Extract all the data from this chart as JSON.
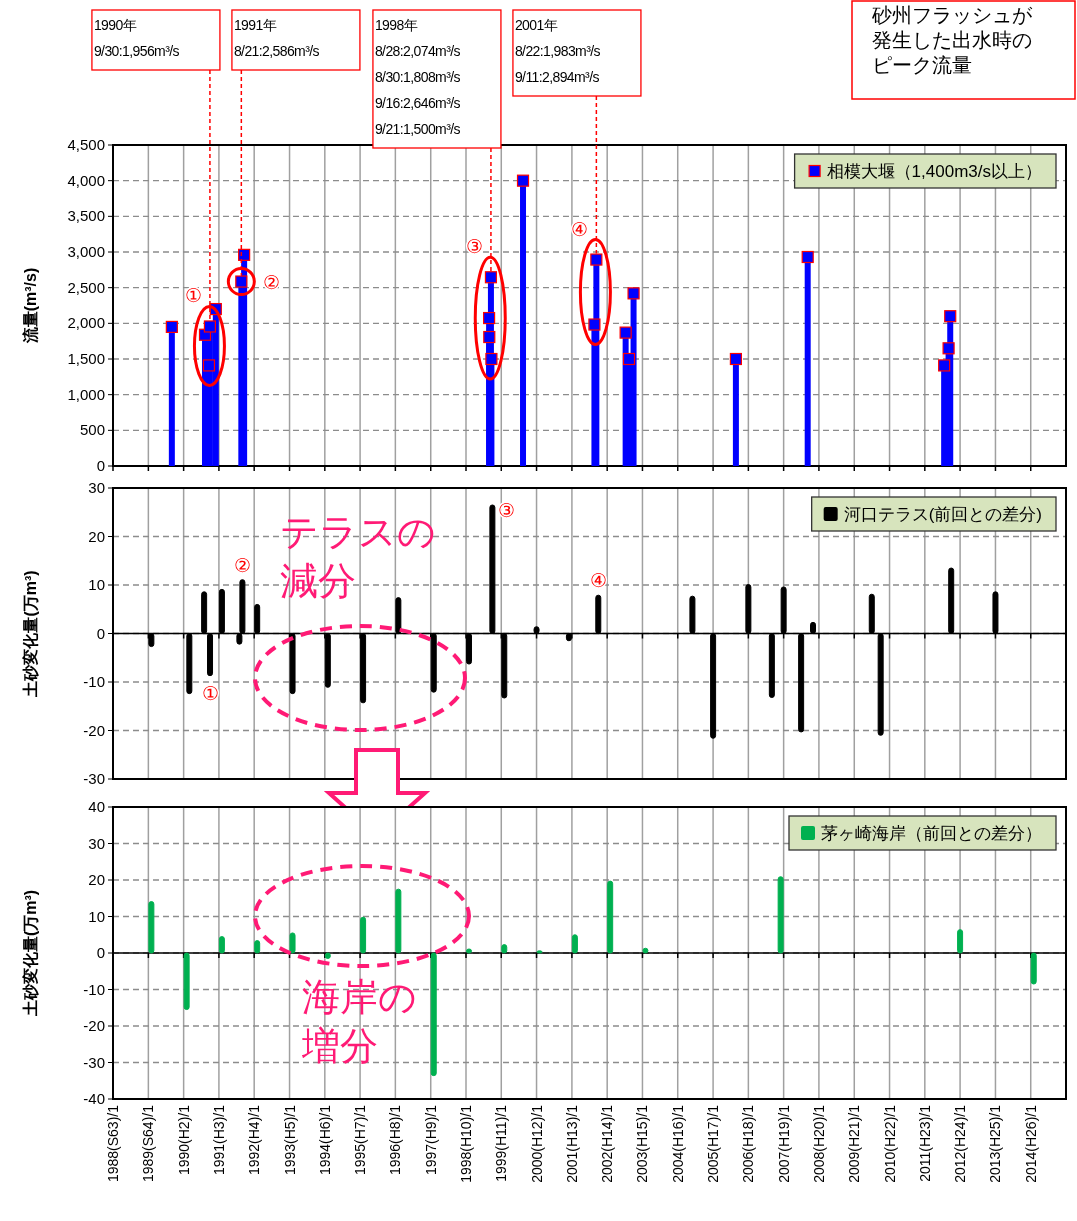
{
  "chart_data": [
    {
      "type": "lollipop",
      "ylabel": "流量(m³/s)",
      "marker": "square",
      "grid": true,
      "legend": "top right",
      "tick_labels": "y",
      "xlim": [
        "1988-01",
        "2015-01"
      ],
      "xticks": [
        {
          "value": "1988-01",
          "label": null
        },
        {
          "value": "1989-01",
          "label": null
        },
        {
          "value": "1990-01",
          "label": null
        },
        {
          "value": "1991-01",
          "label": null
        },
        {
          "value": "1992-01",
          "label": null
        },
        {
          "value": "1993-01",
          "label": null
        },
        {
          "value": "1994-01",
          "label": null
        },
        {
          "value": "1995-01",
          "label": null
        },
        {
          "value": "1996-01",
          "label": null
        },
        {
          "value": "1997-01",
          "label": null
        },
        {
          "value": "1998-01",
          "label": null
        },
        {
          "value": "1999-01",
          "label": null
        },
        {
          "value": "2000-01",
          "label": null
        },
        {
          "value": "2001-01",
          "label": null
        },
        {
          "value": "2002-01",
          "label": null
        },
        {
          "value": "2003-01",
          "label": null
        },
        {
          "value": "2004-01",
          "label": null
        },
        {
          "value": "2005-01",
          "label": null
        },
        {
          "value": "2006-01",
          "label": null
        },
        {
          "value": "2007-01",
          "label": null
        },
        {
          "value": "2008-01",
          "label": null
        },
        {
          "value": "2009-01",
          "label": null
        },
        {
          "value": "2010-01",
          "label": null
        },
        {
          "value": "2011-01",
          "label": null
        },
        {
          "value": "2012-01",
          "label": null
        },
        {
          "value": "2013-01",
          "label": null
        },
        {
          "value": "2014-01",
          "label": null
        }
      ],
      "ylim": [
        0,
        4500
      ],
      "yticks": [
        0,
        500,
        {
          "value": 1000,
          "label": "1,000"
        },
        {
          "value": 1500,
          "label": "1,500"
        },
        {
          "value": 2000,
          "label": "2,000"
        },
        {
          "value": 2500,
          "label": "2,500"
        },
        {
          "value": 3000,
          "label": "3,000"
        },
        {
          "value": 3500,
          "label": "3,500"
        },
        {
          "value": 4000,
          "label": "4,000"
        },
        {
          "value": 4500,
          "label": "4,500"
        }
      ],
      "series": [
        {
          "name": "相模大堰（1,400m3/s以上）",
          "color": "#0000ff",
          "x": [
            "1989-09-01",
            "1990-08-10",
            "1990-09-20",
            "1990-09-30",
            "1990-11-30",
            "1991-08-21",
            "1991-09-19",
            "1998-08-28",
            "1998-08-30",
            "1998-09-16",
            "1998-09-21",
            "1999-08-14",
            "2001-08-22",
            "2001-09-11",
            "2002-07-11",
            "2002-08-15",
            "2002-10-01",
            "2005-08-25",
            "2007-09-07",
            "2011-07-20",
            "2011-09-04",
            "2011-09-21"
          ],
          "values": [
            1950,
            1840,
            1410,
            1956,
            2200,
            2586,
            2960,
            2074,
            1808,
            2646,
            1500,
            4000,
            1983,
            2894,
            1870,
            1500,
            2420,
            1500,
            2930,
            1410,
            1650,
            2100
          ]
        }
      ],
      "annotations": [
        "1990年\n9/30:1,956m³/s",
        {
          "text": "1991年\n8/21:2,586m³/s",
          "x": "1991-08-21",
          "y": 2586
        },
        "1998年\n8/28:2,074m³/s\n8/30:1,808m³/s\n9/16:2,646m³/s\n9/21:1,500m³/s",
        {
          "text": "2001年\n8/22:1,983m³/s\n9/11:2,894m³/s",
          "x": "2001-09-11",
          "y": 2894
        },
        {
          "text": "①",
          "x": "1990-09-30",
          "y": 1956
        },
        {
          "text": "②",
          "x": "1991-08-21",
          "y": 2586
        },
        {
          "text": "③",
          "x": "1998-09-16",
          "y": 2646
        },
        {
          "text": "④",
          "x": "2001-09-11",
          "y": 2894
        },
        "砂州フラッシュが発生した出水時のピーク流量"
      ]
    },
    {
      "type": "bar",
      "ylabel": "土砂変化量(万m³)",
      "grid": true,
      "legend": "top right",
      "tick_labels": "y",
      "xlim": [
        "1988-01",
        "2015-01"
      ],
      "xticks": [
        {
          "value": "1988-01",
          "label": null
        },
        {
          "value": "1989-01",
          "label": null
        },
        {
          "value": "1990-01",
          "label": null
        },
        {
          "value": "1991-01",
          "label": null
        },
        {
          "value": "1992-01",
          "label": null
        },
        {
          "value": "1993-01",
          "label": null
        },
        {
          "value": "1994-01",
          "label": null
        },
        {
          "value": "1995-01",
          "label": null
        },
        {
          "value": "1996-01",
          "label": null
        },
        {
          "value": "1997-01",
          "label": null
        },
        {
          "value": "1998-01",
          "label": null
        },
        {
          "value": "1999-01",
          "label": null
        },
        {
          "value": "2000-01",
          "label": null
        },
        {
          "value": "2001-01",
          "label": null
        },
        {
          "value": "2002-01",
          "label": null
        },
        {
          "value": "2003-01",
          "label": null
        },
        {
          "value": "2004-01",
          "label": null
        },
        {
          "value": "2005-01",
          "label": null
        },
        {
          "value": "2006-01",
          "label": null
        },
        {
          "value": "2007-01",
          "label": null
        },
        {
          "value": "2008-01",
          "label": null
        },
        {
          "value": "2009-01",
          "label": null
        },
        {
          "value": "2010-01",
          "label": null
        },
        {
          "value": "2011-01",
          "label": null
        },
        {
          "value": "2012-01",
          "label": null
        },
        {
          "value": "2013-01",
          "label": null
        },
        {
          "value": "2014-01",
          "label": null
        }
      ],
      "ylim": [
        -30,
        30
      ],
      "yticks": [
        -30,
        -20,
        -10,
        0,
        10,
        20,
        30
      ],
      "series": [
        {
          "name": "河口テラス(前回との差分)",
          "color": "#000000",
          "x": [
            "1989-02",
            "1990-03",
            "1990-08",
            "1990-10",
            "1991-02",
            "1991-08",
            "1991-09",
            "1992-02",
            "1993-02",
            "1994-02",
            "1995-02",
            "1996-02",
            "1997-02",
            "1998-02",
            "1998-10",
            "1999-02",
            "2000-01",
            "2000-12",
            "2001-10",
            "2004-06",
            "2005-01",
            "2006-01",
            "2006-09",
            "2007-01",
            "2007-07",
            "2007-11",
            "2009-07",
            "2009-10",
            "2011-10",
            "2013-01",
            "2014-01"
          ],
          "values": [
            -2.7,
            -12.4,
            8.6,
            -8.7,
            9.1,
            -2.2,
            11.1,
            6.0,
            -12.4,
            -11.1,
            -14.3,
            7.4,
            -12.1,
            -6.3,
            26.5,
            -13.3,
            1.4,
            -1.5,
            7.9,
            7.7,
            -21.6,
            10.1,
            -13.2,
            9.6,
            -20.3,
            2.3,
            8.1,
            -21.0,
            13.5,
            8.6,
            0
          ]
        }
      ],
      "annotations": [
        {
          "text": "①",
          "x": "1990-10",
          "y": -8.7
        },
        {
          "text": "②",
          "x": "1991-09",
          "y": 11.1
        },
        {
          "text": "③",
          "x": "1998-10",
          "y": 26.5
        },
        {
          "text": "④",
          "x": "2001-10",
          "y": 7.9
        },
        "テラスの減分"
      ]
    },
    {
      "type": "bar",
      "ylabel": "土砂変化量(万m³)",
      "grid": true,
      "legend": "top right",
      "xlim": [
        "1988-01",
        "2015-01"
      ],
      "xticks": [
        {
          "value": "1988-01",
          "label": "1988(S63)/1"
        },
        {
          "value": "1989-01",
          "label": "1989(S64)/1"
        },
        {
          "value": "1990-01",
          "label": "1990(H2)/1"
        },
        {
          "value": "1991-01",
          "label": "1991(H3)/1"
        },
        {
          "value": "1992-01",
          "label": "1992(H4)/1"
        },
        {
          "value": "1993-01",
          "label": "1993(H5)/1"
        },
        {
          "value": "1994-01",
          "label": "1994(H6)/1"
        },
        {
          "value": "1995-01",
          "label": "1995(H7)/1"
        },
        {
          "value": "1996-01",
          "label": "1996(H8)/1"
        },
        {
          "value": "1997-01",
          "label": "1997(H9)/1"
        },
        {
          "value": "1998-01",
          "label": "1998(H10)/1"
        },
        {
          "value": "1999-01",
          "label": "1999(H11)/1"
        },
        {
          "value": "2000-01",
          "label": "2000(H12)/1"
        },
        {
          "value": "2001-01",
          "label": "2001(H13)/1"
        },
        {
          "value": "2002-01",
          "label": "2002(H14)/1"
        },
        {
          "value": "2003-01",
          "label": "2003(H15)/1"
        },
        {
          "value": "2004-01",
          "label": "2004(H16)/1"
        },
        {
          "value": "2005-01",
          "label": "2005(H17)/1"
        },
        {
          "value": "2006-01",
          "label": "2006(H18)/1"
        },
        {
          "value": "2007-01",
          "label": "2007(H19)/1"
        },
        {
          "value": "2008-01",
          "label": "2008(H20)/1"
        },
        {
          "value": "2009-01",
          "label": "2009(H21)/1"
        },
        {
          "value": "2010-01",
          "label": "2010(H22)/1"
        },
        {
          "value": "2011-01",
          "label": "2011(H23)/1"
        },
        {
          "value": "2012-01",
          "label": "2012(H24)/1"
        },
        {
          "value": "2013-01",
          "label": "2013(H25)/1"
        },
        {
          "value": "2014-01",
          "label": "2014(H26)/1"
        }
      ],
      "ylim": [
        -40,
        40
      ],
      "yticks": [
        -40,
        -30,
        -20,
        -10,
        0,
        10,
        20,
        30,
        40
      ],
      "series": [
        {
          "name": "茅ヶ崎海岸（前回との差分）",
          "color": "#00b050",
          "x": [
            "1989-02",
            "1990-02",
            "1991-02",
            "1992-02",
            "1993-02",
            "1994-02",
            "1995-02",
            "1996-02",
            "1997-02",
            "1998-02",
            "1999-02",
            "2000-02",
            "2001-02",
            "2002-02",
            "2003-02",
            "2006-12",
            "2012-01",
            "2014-02"
          ],
          "values": [
            14.1,
            -15.5,
            4.5,
            3.4,
            5.5,
            -1.5,
            9.8,
            17.5,
            -33.6,
            1.1,
            2.3,
            0.6,
            5.0,
            19.7,
            1.3,
            20.9,
            6.4,
            -8.5
          ]
        }
      ],
      "annotations": [
        "海岸の増分"
      ]
    }
  ]
}
